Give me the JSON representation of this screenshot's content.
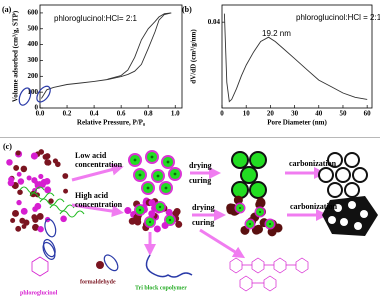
{
  "chart_data": [
    {
      "type": "line",
      "panel_label": "(a)",
      "x_label": "Relative Pressure, P/P₀",
      "y_label": "Volume adsorbed (cm³/g, STP)",
      "annotations": [
        "phloroglucinol:HCl= 2:1"
      ],
      "xlim": [
        0,
        1.05
      ],
      "ylim": [
        0,
        650
      ],
      "xticks": [
        {
          "value": 0,
          "label": "0.0"
        },
        {
          "value": 0.2,
          "label": "0.2"
        },
        {
          "value": 0.4,
          "label": "0.4"
        },
        {
          "value": 0.6,
          "label": "0.6"
        },
        {
          "value": 0.8,
          "label": "0.8"
        },
        {
          "value": 1,
          "label": "1.0"
        }
      ],
      "yticks": [
        0,
        100,
        200,
        300,
        400,
        500,
        600
      ],
      "series": [
        {
          "color": "#333333",
          "x": [
            0.01,
            0.05,
            0.1,
            0.2,
            0.3,
            0.4,
            0.5,
            0.6,
            0.65,
            0.7,
            0.75,
            0.8,
            0.85,
            0.88,
            0.92,
            0.97
          ],
          "values": [
            60,
            115,
            130,
            148,
            158,
            168,
            180,
            198,
            212,
            232,
            275,
            375,
            480,
            555,
            590,
            600
          ]
        },
        {
          "color": "#333333",
          "x": [
            0.97,
            0.92,
            0.88,
            0.85,
            0.8,
            0.75,
            0.7,
            0.65,
            0.6,
            0.5
          ],
          "values": [
            600,
            595,
            575,
            545,
            500,
            430,
            320,
            240,
            205,
            182
          ]
        }
      ]
    },
    {
      "type": "line",
      "panel_label": "(b)",
      "x_label": "Pore Diameter (nm)",
      "y_label": "dV/dD (cm³/g/nm)",
      "annotations": [
        "19.2 nm",
        "phloroglucinol:HCl = 2:1"
      ],
      "xlim": [
        0,
        62
      ],
      "ylim": [
        0,
        0.048
      ],
      "xticks": [
        0,
        10,
        20,
        30,
        40,
        50,
        60
      ],
      "yticks": [
        {
          "value": 0.04,
          "label": "0.04"
        }
      ],
      "series": [
        {
          "color": "#333333",
          "x": [
            1,
            2,
            3,
            4,
            6,
            8,
            10,
            13,
            16,
            19.2,
            22,
            25,
            30,
            35,
            40,
            45,
            50,
            55,
            60
          ],
          "values": [
            0.044,
            0.012,
            0.003,
            0.004,
            0.009,
            0.015,
            0.02,
            0.026,
            0.031,
            0.033,
            0.031,
            0.028,
            0.023,
            0.018,
            0.013,
            0.01,
            0.007,
            0.005,
            0.004
          ]
        }
      ]
    }
  ],
  "diagram": {
    "panel_label": "(c)",
    "low_acid": [
      "Low acid",
      "concentration"
    ],
    "high_acid": [
      "High acid",
      "concentration"
    ],
    "low_steps": [
      "drying",
      "curing",
      "carbonization"
    ],
    "high_steps": [
      "drying",
      "curing",
      "carbonization"
    ],
    "legend": [
      "phloroglucinol",
      "formaldehyde",
      "Tri block copolymer"
    ]
  }
}
